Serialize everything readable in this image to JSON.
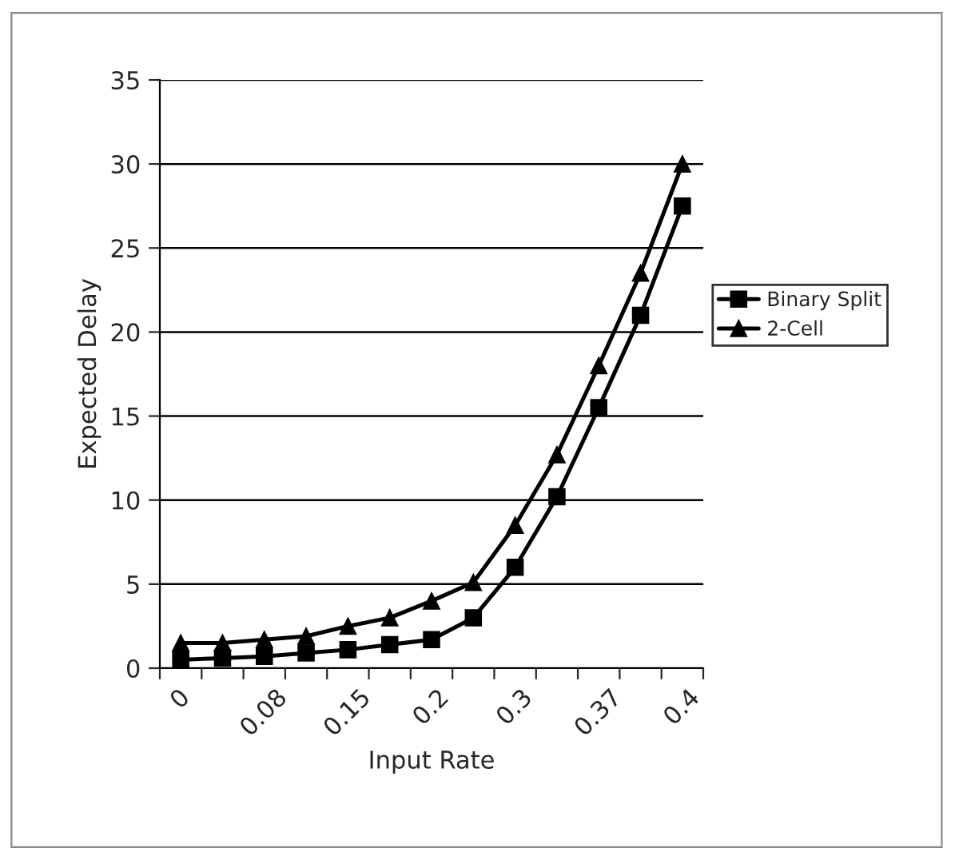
{
  "chart_data": {
    "type": "line",
    "xlabel": "Input Rate",
    "ylabel": "Expected Delay",
    "categories": [
      "0",
      null,
      "0.08",
      null,
      "0.15",
      null,
      "0.2",
      null,
      "0.3",
      null,
      "0.37",
      null,
      "0.4"
    ],
    "series": [
      {
        "name": "Binary Split",
        "color": "#000000",
        "marker": "square",
        "values": [
          0.5,
          0.6,
          0.7,
          0.9,
          1.1,
          1.4,
          1.7,
          3,
          6,
          10.2,
          15.5,
          21,
          27.5
        ]
      },
      {
        "name": "2-Cell",
        "color": "#000000",
        "marker": "triangle",
        "values": [
          1.5,
          1.5,
          1.7,
          1.9,
          2.5,
          3,
          4,
          5.1,
          8.5,
          12.7,
          18,
          23.5,
          30
        ]
      }
    ],
    "ylim": [
      0,
      35
    ],
    "yticks": [
      0,
      5,
      10,
      15,
      20,
      25,
      30,
      35
    ],
    "grid": "y",
    "legend": "right",
    "line_style": "solid"
  }
}
